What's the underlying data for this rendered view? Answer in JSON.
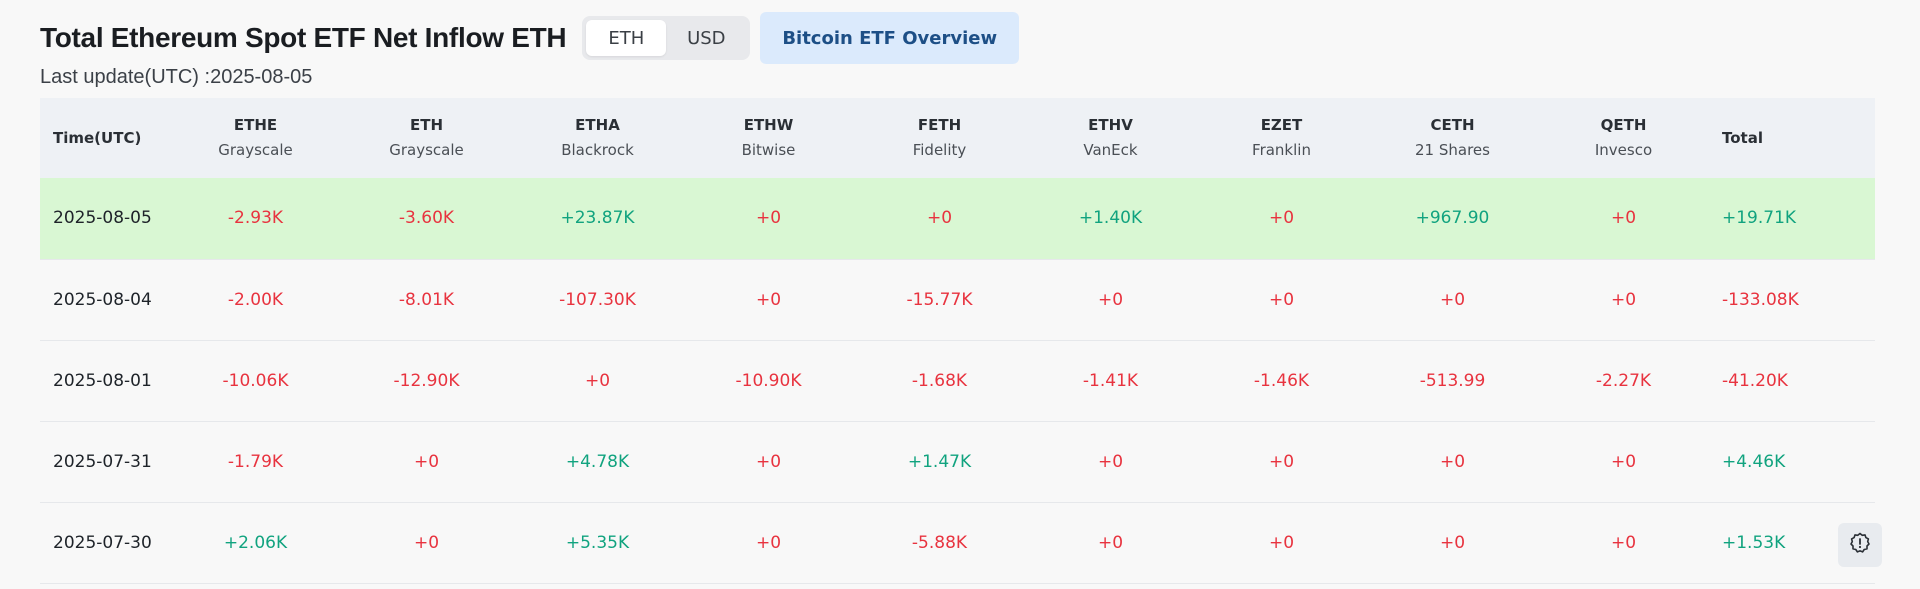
{
  "header": {
    "title": "Total Ethereum Spot ETF Net Inflow ETH",
    "unit_options": [
      {
        "label": "ETH",
        "active": true
      },
      {
        "label": "USD",
        "active": false
      }
    ],
    "overview_button": "Bitcoin ETF Overview",
    "last_update": "Last update(UTC) :2025-08-05"
  },
  "table": {
    "time_header": "Time(UTC)",
    "total_header": "Total",
    "columns": [
      {
        "ticker": "ETHE",
        "issuer": "Grayscale"
      },
      {
        "ticker": "ETH",
        "issuer": "Grayscale"
      },
      {
        "ticker": "ETHA",
        "issuer": "Blackrock"
      },
      {
        "ticker": "ETHW",
        "issuer": "Bitwise"
      },
      {
        "ticker": "FETH",
        "issuer": "Fidelity"
      },
      {
        "ticker": "ETHV",
        "issuer": "VanEck"
      },
      {
        "ticker": "EZET",
        "issuer": "Franklin"
      },
      {
        "ticker": "CETH",
        "issuer": "21 Shares"
      },
      {
        "ticker": "QETH",
        "issuer": "Invesco"
      }
    ],
    "rows": [
      {
        "date": "2025-08-05",
        "highlight": true,
        "values": [
          "-2.93K",
          "-3.60K",
          "+23.87K",
          "+0",
          "+0",
          "+1.40K",
          "+0",
          "+967.90",
          "+0"
        ],
        "total": "+19.71K"
      },
      {
        "date": "2025-08-04",
        "highlight": false,
        "values": [
          "-2.00K",
          "-8.01K",
          "-107.30K",
          "+0",
          "-15.77K",
          "+0",
          "+0",
          "+0",
          "+0"
        ],
        "total": "-133.08K"
      },
      {
        "date": "2025-08-01",
        "highlight": false,
        "values": [
          "-10.06K",
          "-12.90K",
          "+0",
          "-10.90K",
          "-1.68K",
          "-1.41K",
          "-1.46K",
          "-513.99",
          "-2.27K"
        ],
        "total": "-41.20K"
      },
      {
        "date": "2025-07-31",
        "highlight": false,
        "values": [
          "-1.79K",
          "+0",
          "+4.78K",
          "+0",
          "+1.47K",
          "+0",
          "+0",
          "+0",
          "+0"
        ],
        "total": "+4.46K"
      },
      {
        "date": "2025-07-30",
        "highlight": false,
        "values": [
          "+2.06K",
          "+0",
          "+5.35K",
          "+0",
          "-5.88K",
          "+0",
          "+0",
          "+0",
          "+0"
        ],
        "total": "+1.53K"
      }
    ]
  },
  "colors": {
    "positive": "#11a37f",
    "negative": "#e8333f",
    "highlight_row": "#d9f7d3",
    "accent": "#1d4f86"
  },
  "icons": {
    "fab": "settings-alert-icon"
  }
}
